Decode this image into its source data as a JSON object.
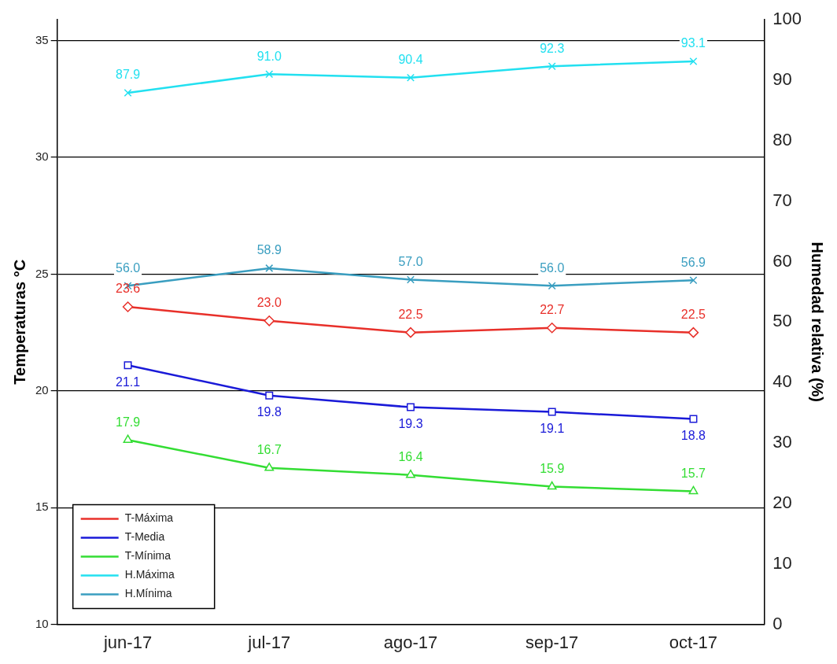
{
  "chart_data": {
    "type": "line",
    "ylabel": "Temperaturas °C",
    "y2label": "Humedad relativa (%)",
    "categories": [
      "jun-17",
      "jul-17",
      "ago-17",
      "sep-17",
      "oct-17"
    ],
    "series": [
      {
        "name": "T-Máxima",
        "color": "#e8302a",
        "marker": "diamond",
        "values": [
          23.6,
          23.0,
          22.5,
          22.7,
          22.5
        ],
        "value_labels": [
          "23.6",
          "23.0",
          "22.5",
          "22.7",
          "22.5"
        ]
      },
      {
        "name": "T-Media",
        "color": "#1a1ad8",
        "marker": "square",
        "values": [
          21.1,
          19.8,
          19.3,
          19.1,
          18.8
        ],
        "value_labels": [
          "21.1",
          "19.8",
          "19.3",
          "19.1",
          "18.8"
        ]
      },
      {
        "name": "T-Mínima",
        "color": "#33dd33",
        "marker": "triangle",
        "values": [
          17.9,
          16.7,
          16.4,
          15.9,
          15.7
        ],
        "value_labels": [
          "17.9",
          "16.7",
          "16.4",
          "15.9",
          "15.7"
        ]
      },
      {
        "name": "H.Máxima",
        "color": "#22e0f0",
        "marker": "cross",
        "axis": "y2",
        "values": [
          87.9,
          91.0,
          90.4,
          92.3,
          93.1
        ],
        "value_labels": [
          "87.9",
          "91.0",
          "90.4",
          "92.3",
          "93.1"
        ]
      },
      {
        "name": "H.Mínima",
        "color": "#3a9ec0",
        "marker": "cross",
        "axis": "y2",
        "values": [
          56.0,
          58.9,
          57.0,
          56.0,
          56.9
        ],
        "value_labels": [
          "56.0",
          "58.9",
          "57.0",
          "56.0",
          "56.9"
        ]
      }
    ],
    "ylim": [
      10,
      35.9
    ],
    "yticks": [
      10,
      15,
      20,
      25,
      30,
      35
    ],
    "y2lim": [
      0,
      100
    ],
    "y2ticks": [
      0,
      10,
      20,
      30,
      40,
      50,
      60,
      70,
      80,
      90,
      100
    ],
    "grid": "y",
    "legend": "bottom left",
    "line_style": "solid"
  }
}
